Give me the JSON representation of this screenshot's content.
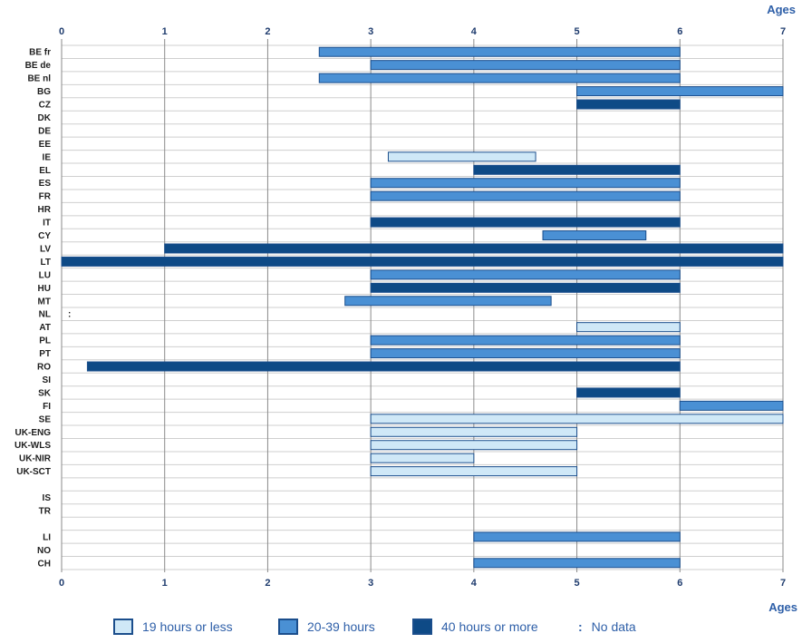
{
  "chart_data": {
    "type": "bar",
    "orientation": "horizontal-range",
    "axis_title": "Ages",
    "xlim": [
      0,
      7
    ],
    "x_ticks": [
      "0",
      "1",
      "2",
      "3",
      "4",
      "5",
      "6",
      "7"
    ],
    "grid": true,
    "legend_placement": "bottom",
    "colors": {
      "h19": "#cfe8f7",
      "h20_39": "#4a90d4",
      "h40": "#0e4a86",
      "border": "#1b4e8c",
      "grid": "#cfcfcf",
      "axis_text": "#1f3c6e",
      "label_blue": "#2e5fa8"
    },
    "categories": [
      {
        "key": "h19",
        "label": "19 hours or less"
      },
      {
        "key": "h20_39",
        "label": "20-39 hours"
      },
      {
        "key": "h40",
        "label": "40 hours or more"
      }
    ],
    "nodata": {
      "symbol": ":",
      "label": "No data"
    },
    "rows": [
      {
        "label": "BE fr",
        "bars": [
          {
            "from": 2.5,
            "to": 6,
            "cat": "h20_39"
          }
        ]
      },
      {
        "label": "BE de",
        "bars": [
          {
            "from": 3,
            "to": 6,
            "cat": "h20_39"
          }
        ]
      },
      {
        "label": "BE nl",
        "bars": [
          {
            "from": 2.5,
            "to": 6,
            "cat": "h20_39"
          }
        ]
      },
      {
        "label": "BG",
        "bars": [
          {
            "from": 5,
            "to": 7,
            "cat": "h20_39"
          }
        ]
      },
      {
        "label": "CZ",
        "bars": [
          {
            "from": 5,
            "to": 6,
            "cat": "h40"
          }
        ]
      },
      {
        "label": "DK",
        "bars": []
      },
      {
        "label": "DE",
        "bars": []
      },
      {
        "label": "EE",
        "bars": []
      },
      {
        "label": "IE",
        "bars": [
          {
            "from": 3.17,
            "to": 4.6,
            "cat": "h19"
          }
        ]
      },
      {
        "label": "EL",
        "bars": [
          {
            "from": 4,
            "to": 6,
            "cat": "h40"
          }
        ]
      },
      {
        "label": "ES",
        "bars": [
          {
            "from": 3,
            "to": 6,
            "cat": "h20_39"
          }
        ]
      },
      {
        "label": "FR",
        "bars": [
          {
            "from": 3,
            "to": 6,
            "cat": "h20_39"
          }
        ]
      },
      {
        "label": "HR",
        "bars": []
      },
      {
        "label": "IT",
        "bars": [
          {
            "from": 3,
            "to": 6,
            "cat": "h40"
          }
        ]
      },
      {
        "label": "CY",
        "bars": [
          {
            "from": 4.67,
            "to": 5.67,
            "cat": "h20_39"
          }
        ]
      },
      {
        "label": "LV",
        "bars": [
          {
            "from": 1,
            "to": 7,
            "cat": "h40"
          }
        ]
      },
      {
        "label": "LT",
        "bars": [
          {
            "from": 0,
            "to": 7,
            "cat": "h40"
          }
        ]
      },
      {
        "label": "LU",
        "bars": [
          {
            "from": 3,
            "to": 6,
            "cat": "h20_39"
          }
        ]
      },
      {
        "label": "HU",
        "bars": [
          {
            "from": 3,
            "to": 6,
            "cat": "h40"
          }
        ]
      },
      {
        "label": "MT",
        "bars": [
          {
            "from": 2.75,
            "to": 4.75,
            "cat": "h20_39"
          }
        ]
      },
      {
        "label": "NL",
        "bars": [],
        "nodata": true
      },
      {
        "label": "AT",
        "bars": [
          {
            "from": 5,
            "to": 6,
            "cat": "h19"
          }
        ]
      },
      {
        "label": "PL",
        "bars": [
          {
            "from": 3,
            "to": 6,
            "cat": "h20_39"
          }
        ]
      },
      {
        "label": "PT",
        "bars": [
          {
            "from": 3,
            "to": 6,
            "cat": "h20_39"
          }
        ]
      },
      {
        "label": "RO",
        "bars": [
          {
            "from": 0.25,
            "to": 6,
            "cat": "h40"
          }
        ]
      },
      {
        "label": "SI",
        "bars": []
      },
      {
        "label": "SK",
        "bars": [
          {
            "from": 5,
            "to": 6,
            "cat": "h40"
          }
        ]
      },
      {
        "label": "FI",
        "bars": [
          {
            "from": 6,
            "to": 7,
            "cat": "h20_39"
          }
        ]
      },
      {
        "label": "SE",
        "bars": [
          {
            "from": 3,
            "to": 7,
            "cat": "h19"
          }
        ]
      },
      {
        "label": "UK-ENG",
        "bars": [
          {
            "from": 3,
            "to": 5,
            "cat": "h19"
          }
        ]
      },
      {
        "label": "UK-WLS",
        "bars": [
          {
            "from": 3,
            "to": 5,
            "cat": "h19"
          }
        ]
      },
      {
        "label": "UK-NIR",
        "bars": [
          {
            "from": 3,
            "to": 4,
            "cat": "h19"
          }
        ]
      },
      {
        "label": "UK-SCT",
        "bars": [
          {
            "from": 3,
            "to": 5,
            "cat": "h19"
          }
        ]
      },
      {
        "label": "",
        "bars": []
      },
      {
        "label": "IS",
        "bars": []
      },
      {
        "label": "TR",
        "bars": []
      },
      {
        "label": "",
        "bars": []
      },
      {
        "label": "LI",
        "bars": [
          {
            "from": 4,
            "to": 6,
            "cat": "h20_39"
          }
        ]
      },
      {
        "label": "NO",
        "bars": []
      },
      {
        "label": "CH",
        "bars": [
          {
            "from": 4,
            "to": 6,
            "cat": "h20_39"
          }
        ]
      }
    ]
  }
}
